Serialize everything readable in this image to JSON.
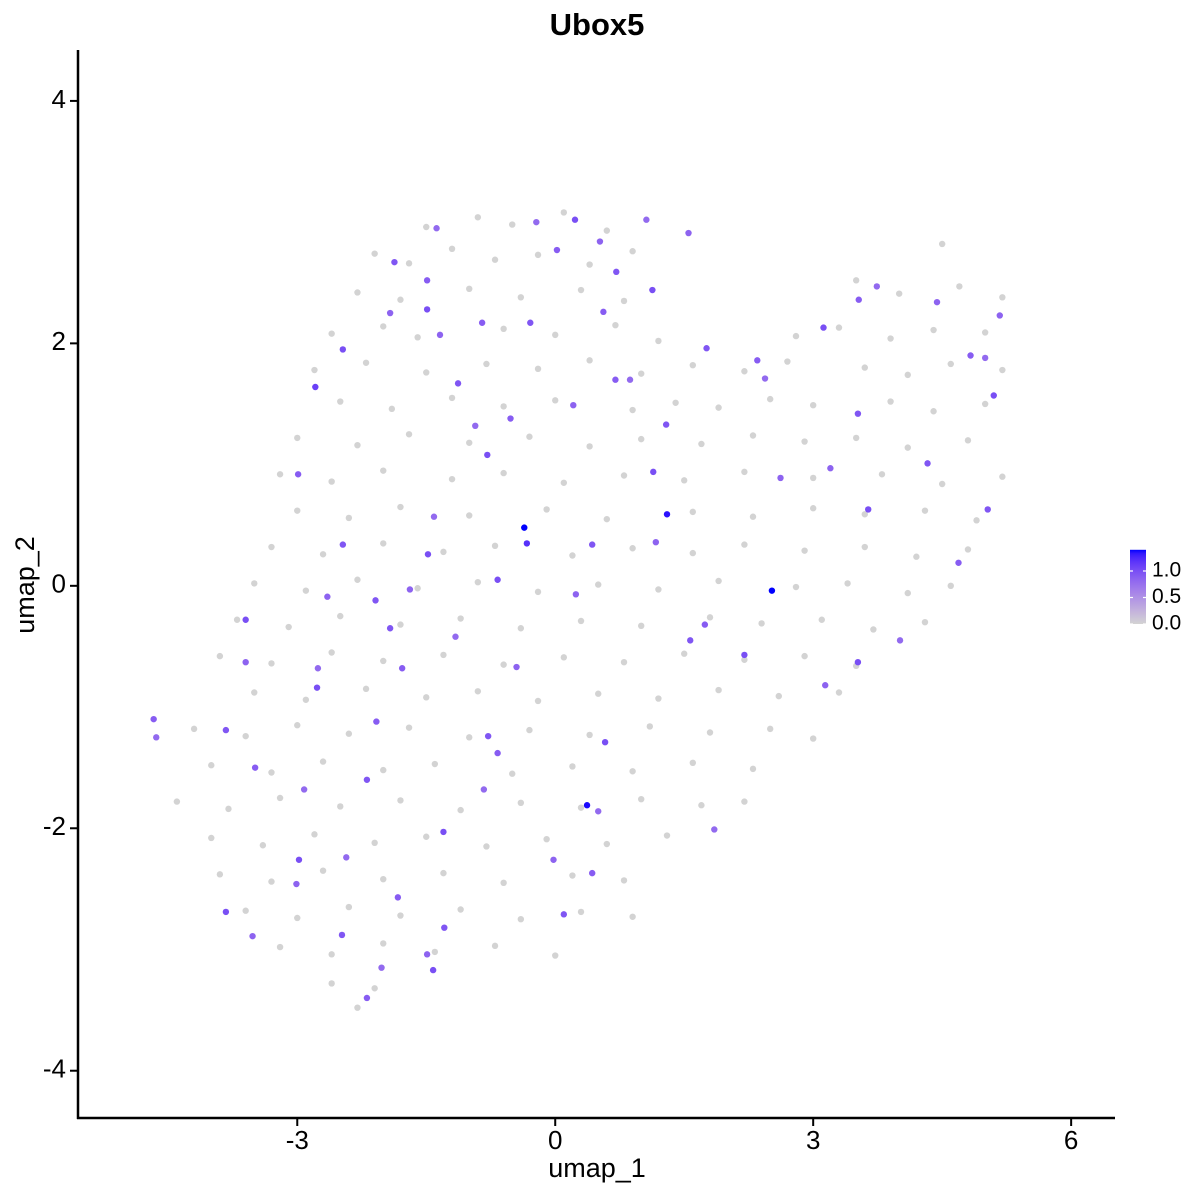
{
  "chart_data": {
    "type": "scatter",
    "title": "Ubox5",
    "x_label": "umap_1",
    "y_label": "umap_2",
    "xlim": [
      -5.55,
      6.51
    ],
    "ylim": [
      -4.39,
      4.42
    ],
    "xticks": [
      -3,
      0,
      3,
      6
    ],
    "yticks": [
      -4,
      -2,
      0,
      2,
      4
    ],
    "low_color": "#d3d3d3",
    "high_color": "#0000ff",
    "colorbar_lim": [
      0,
      1.4
    ],
    "colorbar_ticks": [
      {
        "value": 0,
        "label": "0.0"
      },
      0.5,
      {
        "value": 1,
        "label": "1.0"
      }
    ],
    "x": [
      -1.5,
      -0.9,
      -0.5,
      0.1,
      0.6,
      -2.1,
      -1.7,
      -1.2,
      -0.7,
      -0.2,
      0.4,
      0.9,
      4.5,
      -2.3,
      -1.8,
      -1.0,
      -0.4,
      0.3,
      0.8,
      3.5,
      4.0,
      4.7,
      5.2,
      -2.6,
      -2.0,
      -1.6,
      -0.6,
      0.0,
      0.7,
      1.2,
      2.8,
      3.3,
      3.9,
      4.4,
      5.0,
      -2.8,
      -2.2,
      -1.5,
      -0.8,
      -0.2,
      0.4,
      1.0,
      1.6,
      2.2,
      2.7,
      3.6,
      4.1,
      4.6,
      5.2,
      -2.5,
      -1.9,
      -1.2,
      -0.6,
      0.0,
      0.9,
      1.4,
      1.9,
      2.5,
      3.0,
      3.9,
      4.4,
      5.0,
      -3.0,
      -2.3,
      -1.7,
      -1.0,
      -0.3,
      0.4,
      1.0,
      1.7,
      2.3,
      2.9,
      3.5,
      4.1,
      4.8,
      -3.2,
      -2.6,
      -2.0,
      -1.2,
      -0.6,
      0.1,
      0.8,
      1.5,
      2.2,
      3.0,
      3.8,
      4.5,
      5.2,
      -3.0,
      -2.4,
      -1.8,
      -1.0,
      -0.1,
      0.6,
      1.6,
      2.3,
      3.0,
      3.6,
      4.3,
      4.9,
      -3.3,
      -2.7,
      -2.0,
      -1.3,
      -0.7,
      0.2,
      0.9,
      1.6,
      2.2,
      2.9,
      3.6,
      4.2,
      4.8,
      -3.5,
      -2.9,
      -2.3,
      -1.6,
      -0.9,
      -0.2,
      0.5,
      1.2,
      1.9,
      2.8,
      3.4,
      4.1,
      4.6,
      -3.7,
      -3.1,
      -2.5,
      -1.8,
      -1.1,
      -0.4,
      0.3,
      1.0,
      1.8,
      2.4,
      3.1,
      3.7,
      4.3,
      -3.9,
      -3.3,
      -2.6,
      -2.0,
      -1.3,
      -0.6,
      0.1,
      0.8,
      1.5,
      2.2,
      2.9,
      3.5,
      -3.5,
      -2.9,
      -2.2,
      -1.5,
      -0.9,
      -0.2,
      0.5,
      1.2,
      1.9,
      2.6,
      3.3,
      -4.2,
      -3.6,
      -3.0,
      -2.4,
      -1.7,
      -1.0,
      -0.3,
      0.4,
      1.1,
      1.8,
      2.5,
      3.0,
      -4.0,
      -3.3,
      -2.7,
      -2.0,
      -1.4,
      -0.5,
      0.2,
      0.9,
      1.6,
      2.3,
      -4.4,
      -3.8,
      -3.2,
      -2.5,
      -1.8,
      -1.1,
      -0.4,
      0.3,
      1.0,
      1.7,
      2.2,
      -4.0,
      -3.4,
      -2.8,
      -2.1,
      -1.5,
      -0.8,
      -0.1,
      0.6,
      1.3,
      -3.9,
      -3.3,
      -2.7,
      -2.0,
      -1.3,
      -0.6,
      0.2,
      0.8,
      -3.6,
      -3.0,
      -2.4,
      -1.8,
      -1.1,
      -0.4,
      0.3,
      0.9,
      -3.2,
      -2.6,
      -2.0,
      -1.4,
      -0.7,
      0.0,
      -2.6,
      -2.1,
      -2.3,
      -4.67,
      -4.64,
      -3.6,
      -3.6,
      -3.83,
      -3.49,
      -2.92,
      -3.83,
      -3.52,
      -2.48,
      -2.19,
      -2.02,
      -1.42,
      -1.49,
      -1.29,
      -1.83,
      -2.43,
      -2.98,
      -3.01,
      -2.19,
      -2.08,
      -2.76,
      -2.77,
      -2.65,
      -2.47,
      -2.99,
      -2.79,
      -2.47,
      -1.92,
      -1.87,
      -1.49,
      -1.38,
      -1.49,
      -1.34,
      -1.13,
      -0.85,
      -1.41,
      -1.48,
      -1.69,
      -1.92,
      -1.78,
      -1.16,
      -0.67,
      -0.45,
      -0.78,
      -0.67,
      -0.83,
      -1.3,
      -0.02,
      0.1,
      0.43,
      0.5,
      0.58,
      0.24,
      0.43,
      -0.52,
      -0.93,
      -0.79,
      0.21,
      -0.29,
      0.02,
      -0.22,
      0.23,
      0.52,
      0.71,
      0.56,
      1.06,
      1.13,
      1.55,
      1.29,
      0.7,
      0.87,
      1.14,
      1.17,
      1.57,
      1.74,
      1.85,
      2.2,
      2.62,
      1.76,
      2.35,
      2.44,
      3.12,
      3.2,
      3.52,
      3.53,
      3.74,
      3.64,
      4.44,
      4.33,
      4.83,
      5.0,
      5.1,
      5.17,
      5.03,
      4.69,
      4.01,
      3.52,
      3.14,
      -2.09,
      -0.36,
      -0.33,
      1.3,
      2.52,
      0.37
    ],
    "values": [
      2.96,
      3.04,
      2.98,
      3.08,
      2.93,
      2.74,
      2.66,
      2.78,
      2.69,
      2.73,
      2.65,
      2.76,
      2.82,
      2.42,
      2.36,
      2.45,
      2.38,
      2.44,
      2.35,
      2.52,
      2.41,
      2.47,
      2.38,
      2.08,
      2.14,
      2.05,
      2.12,
      2.07,
      2.15,
      2.02,
      2.06,
      2.13,
      2.04,
      2.11,
      2.09,
      1.78,
      1.84,
      1.76,
      1.83,
      1.79,
      1.86,
      1.75,
      1.82,
      1.77,
      1.85,
      1.8,
      1.74,
      1.83,
      1.78,
      1.52,
      1.46,
      1.55,
      1.48,
      1.53,
      1.45,
      1.51,
      1.47,
      1.54,
      1.49,
      1.52,
      1.44,
      1.5,
      1.22,
      1.16,
      1.25,
      1.18,
      1.23,
      1.15,
      1.21,
      1.17,
      1.24,
      1.19,
      1.22,
      1.14,
      1.2,
      0.92,
      0.86,
      0.95,
      0.88,
      0.93,
      0.85,
      0.91,
      0.87,
      0.94,
      0.89,
      0.92,
      0.84,
      0.9,
      0.62,
      0.56,
      0.65,
      0.58,
      0.63,
      0.55,
      0.61,
      0.57,
      0.64,
      0.59,
      0.62,
      0.54,
      0.32,
      0.26,
      0.35,
      0.28,
      0.33,
      0.25,
      0.31,
      0.27,
      0.34,
      0.29,
      0.32,
      0.24,
      0.3,
      0.02,
      -0.04,
      0.05,
      -0.02,
      0.03,
      -0.05,
      0.01,
      -0.03,
      0.04,
      -0.01,
      0.02,
      -0.06,
      0.0,
      -0.28,
      -0.34,
      -0.25,
      -0.32,
      -0.27,
      -0.35,
      -0.29,
      -0.33,
      -0.26,
      -0.31,
      -0.28,
      -0.36,
      -0.3,
      -0.58,
      -0.64,
      -0.55,
      -0.62,
      -0.57,
      -0.65,
      -0.59,
      -0.63,
      -0.56,
      -0.61,
      -0.58,
      -0.66,
      -0.88,
      -0.94,
      -0.85,
      -0.92,
      -0.87,
      -0.95,
      -0.89,
      -0.93,
      -0.86,
      -0.91,
      -0.88,
      -1.18,
      -1.24,
      -1.15,
      -1.22,
      -1.17,
      -1.25,
      -1.19,
      -1.23,
      -1.16,
      -1.21,
      -1.18,
      -1.26,
      -1.48,
      -1.54,
      -1.45,
      -1.52,
      -1.47,
      -1.55,
      -1.49,
      -1.53,
      -1.46,
      -1.51,
      -1.78,
      -1.84,
      -1.75,
      -1.82,
      -1.77,
      -1.85,
      -1.79,
      -1.83,
      -1.76,
      -1.81,
      -1.78,
      -2.08,
      -2.14,
      -2.05,
      -2.12,
      -2.07,
      -2.15,
      -2.09,
      -2.13,
      -2.06,
      -2.38,
      -2.44,
      -2.35,
      -2.42,
      -2.37,
      -2.45,
      -2.39,
      -2.43,
      -2.68,
      -2.74,
      -2.65,
      -2.72,
      -2.67,
      -2.75,
      -2.69,
      -2.73,
      -2.98,
      -3.04,
      -2.95,
      -3.02,
      -2.97,
      -3.05,
      -3.28,
      -3.32,
      -3.48,
      -1.1,
      -1.25,
      -0.28,
      -0.63,
      -1.19,
      -1.5,
      -1.68,
      -2.69,
      -2.89,
      -2.88,
      -3.4,
      -3.15,
      -3.17,
      -3.04,
      -2.82,
      -2.57,
      -2.24,
      -2.26,
      -2.46,
      -1.6,
      -1.12,
      -0.68,
      -0.84,
      -0.09,
      0.34,
      0.92,
      1.64,
      1.95,
      2.25,
      2.67,
      2.52,
      2.95,
      2.28,
      2.07,
      1.67,
      2.17,
      0.57,
      0.26,
      -0.03,
      -0.35,
      -0.68,
      -0.42,
      0.05,
      -0.67,
      -1.24,
      -1.38,
      -1.68,
      -2.03,
      -2.26,
      -2.71,
      -2.37,
      -1.86,
      -1.29,
      -0.07,
      0.34,
      1.38,
      1.32,
      1.08,
      1.49,
      2.17,
      2.77,
      3.0,
      3.02,
      2.84,
      2.59,
      2.26,
      3.02,
      2.44,
      2.91,
      1.33,
      1.7,
      1.7,
      0.94,
      0.36,
      -0.45,
      -0.32,
      -2.01,
      -0.57,
      0.89,
      1.96,
      1.86,
      1.71,
      2.13,
      0.97,
      1.42,
      2.36,
      2.47,
      0.63,
      2.34,
      1.01,
      1.9,
      1.88,
      1.57,
      2.23,
      0.63,
      0.19,
      -0.45,
      -0.63,
      -0.82,
      -0.12,
      0.48,
      0.35,
      0.59,
      -0.04,
      -1.81
    ],
    "expression": [
      0,
      0,
      0,
      0,
      0,
      0,
      0,
      0,
      0,
      0,
      0,
      0,
      0,
      0,
      0,
      0,
      0,
      0,
      0,
      0,
      0,
      0,
      0,
      0,
      0,
      0,
      0,
      0,
      0,
      0,
      0,
      0,
      0,
      0,
      0,
      0,
      0,
      0,
      0,
      0,
      0,
      0,
      0,
      0,
      0,
      0,
      0,
      0,
      0,
      0,
      0,
      0,
      0,
      0,
      0,
      0,
      0,
      0,
      0,
      0,
      0,
      0,
      0,
      0,
      0,
      0,
      0,
      0,
      0,
      0,
      0,
      0,
      0,
      0,
      0,
      0,
      0,
      0,
      0,
      0,
      0,
      0,
      0,
      0,
      0,
      0,
      0,
      0,
      0,
      0,
      0,
      0,
      0,
      0,
      0,
      0,
      0,
      0,
      0,
      0,
      0,
      0,
      0,
      0,
      0,
      0,
      0,
      0,
      0,
      0,
      0,
      0,
      0,
      0,
      0,
      0,
      0,
      0,
      0,
      0,
      0,
      0,
      0,
      0,
      0,
      0,
      0,
      0,
      0,
      0,
      0,
      0,
      0,
      0,
      0,
      0,
      0,
      0,
      0,
      0,
      0,
      0,
      0,
      0,
      0,
      0,
      0,
      0,
      0,
      0,
      0,
      0,
      0,
      0,
      0,
      0,
      0,
      0,
      0,
      0,
      0,
      0,
      0,
      0,
      0,
      0,
      0,
      0,
      0,
      0,
      0,
      0,
      0,
      0,
      0,
      0,
      0,
      0,
      0,
      0,
      0,
      0,
      0,
      0,
      0,
      0,
      0,
      0,
      0,
      0,
      0,
      0,
      0,
      0,
      0,
      0,
      0,
      0,
      0,
      0,
      0,
      0,
      0,
      0,
      0,
      0,
      0,
      0,
      0,
      0,
      0,
      0,
      0,
      0,
      0,
      0,
      0,
      0,
      0,
      0,
      0,
      0,
      0,
      0,
      0,
      0,
      0,
      0,
      0,
      0.9,
      0.8,
      1.0,
      0.85,
      0.95,
      0.9,
      0.8,
      1.0,
      0.85,
      0.95,
      0.9,
      0.8,
      1.0,
      0.85,
      0.95,
      0.9,
      0.8,
      1.0,
      0.85,
      0.95,
      0.9,
      0.8,
      1.0,
      0.85,
      0.95,
      0.9,
      1.1,
      1.0,
      0.85,
      0.95,
      0.9,
      0.8,
      1.0,
      0.85,
      0.95,
      0.9,
      0.8,
      1.0,
      0.85,
      0.95,
      0.9,
      0.8,
      1.0,
      0.85,
      0.95,
      0.9,
      0.8,
      1.0,
      0.85,
      0.95,
      0.9,
      0.8,
      1.0,
      0.85,
      0.95,
      0.9,
      0.8,
      1.0,
      0.85,
      0.95,
      0.9,
      0.8,
      1.0,
      0.85,
      0.95,
      0.9,
      0.8,
      1.0,
      0.85,
      0.95,
      0.9,
      0.8,
      1.0,
      0.85,
      0.95,
      0.9,
      0.8,
      1.0,
      0.85,
      0.95,
      0.9,
      0.8,
      1.0,
      0.85,
      0.95,
      0.9,
      0.8,
      1.0,
      0.85,
      0.95,
      0.9,
      0.8,
      1.0,
      0.85,
      0.95,
      0.9,
      0.8,
      1.0,
      0.85,
      0.95,
      1.4,
      1.2,
      1.35,
      1.4,
      1.38
    ]
  }
}
